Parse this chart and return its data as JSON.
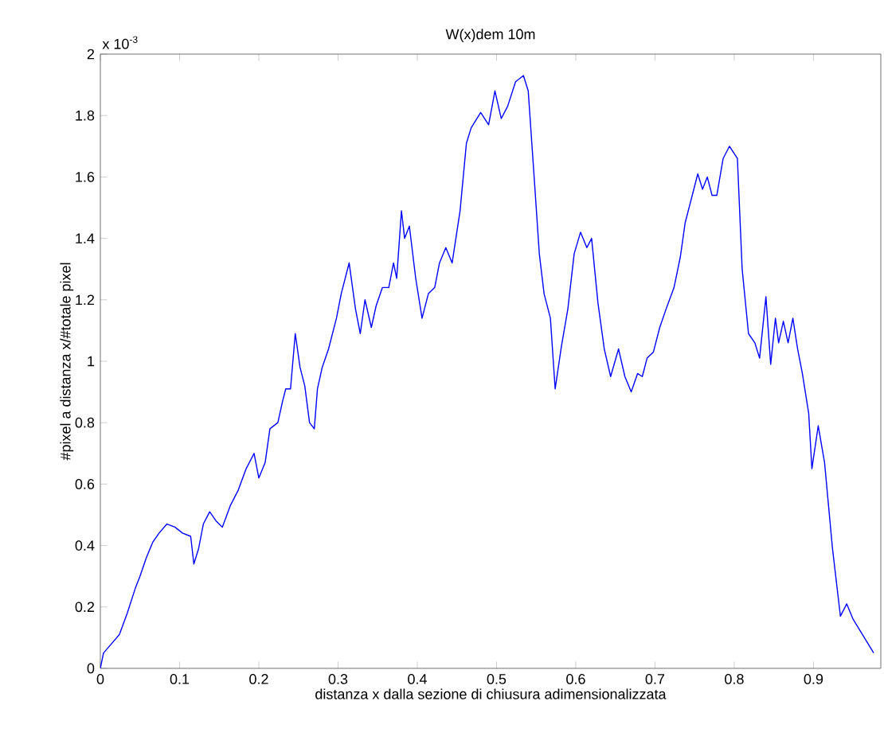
{
  "chart_data": {
    "type": "line",
    "title": "W(x)dem 10m",
    "xlabel": "distanza x dalla sezione di chiusura adimensionalizzata",
    "ylabel": "#pixel a distanza x/#totale pixel",
    "annotations": [
      "x 10$^{-3}$"
    ],
    "xlim": [
      0,
      0.985
    ],
    "xticks": [
      0,
      0.1,
      0.2,
      0.3,
      0.4,
      0.5,
      0.6,
      0.7,
      0.8,
      0.9
    ],
    "ylim": [
      0,
      2
    ],
    "yticks": [
      0,
      0.2,
      0.4,
      0.6,
      0.8,
      1,
      1.2,
      1.4,
      1.6,
      1.8,
      2
    ],
    "series": [
      {
        "color": "#0000ff",
        "x": [
          0,
          0.004,
          0.014,
          0.024,
          0.034,
          0.044,
          0.05,
          0.058,
          0.066,
          0.074,
          0.084,
          0.094,
          0.104,
          0.114,
          0.118,
          0.124,
          0.13,
          0.138,
          0.146,
          0.154,
          0.164,
          0.174,
          0.184,
          0.194,
          0.2,
          0.208,
          0.214,
          0.224,
          0.23,
          0.234,
          0.24,
          0.246,
          0.252,
          0.258,
          0.264,
          0.27,
          0.274,
          0.28,
          0.288,
          0.298,
          0.304,
          0.314,
          0.322,
          0.328,
          0.334,
          0.342,
          0.348,
          0.356,
          0.364,
          0.37,
          0.374,
          0.38,
          0.384,
          0.39,
          0.398,
          0.406,
          0.414,
          0.422,
          0.428,
          0.436,
          0.444,
          0.454,
          0.462,
          0.468,
          0.48,
          0.49,
          0.498,
          0.506,
          0.514,
          0.524,
          0.534,
          0.54,
          0.548,
          0.554,
          0.56,
          0.568,
          0.574,
          0.582,
          0.59,
          0.598,
          0.606,
          0.614,
          0.62,
          0.628,
          0.636,
          0.644,
          0.654,
          0.662,
          0.67,
          0.678,
          0.684,
          0.69,
          0.698,
          0.706,
          0.714,
          0.724,
          0.732,
          0.738,
          0.746,
          0.754,
          0.76,
          0.766,
          0.772,
          0.778,
          0.786,
          0.794,
          0.804,
          0.81,
          0.818,
          0.826,
          0.832,
          0.84,
          0.846,
          0.852,
          0.856,
          0.862,
          0.868,
          0.874,
          0.88,
          0.886,
          0.894,
          0.898,
          0.906,
          0.914,
          0.924,
          0.934,
          0.942,
          0.95,
          0.976
        ],
        "values": [
          0,
          0.05,
          0.08,
          0.11,
          0.18,
          0.26,
          0.3,
          0.36,
          0.41,
          0.44,
          0.47,
          0.46,
          0.44,
          0.43,
          0.34,
          0.39,
          0.47,
          0.51,
          0.48,
          0.46,
          0.53,
          0.58,
          0.65,
          0.7,
          0.62,
          0.67,
          0.78,
          0.8,
          0.87,
          0.91,
          0.91,
          1.09,
          0.98,
          0.92,
          0.8,
          0.78,
          0.91,
          0.98,
          1.04,
          1.14,
          1.22,
          1.32,
          1.17,
          1.09,
          1.2,
          1.11,
          1.18,
          1.24,
          1.24,
          1.32,
          1.27,
          1.49,
          1.4,
          1.44,
          1.27,
          1.14,
          1.22,
          1.24,
          1.32,
          1.37,
          1.32,
          1.49,
          1.71,
          1.76,
          1.81,
          1.77,
          1.88,
          1.79,
          1.83,
          1.91,
          1.93,
          1.88,
          1.58,
          1.35,
          1.22,
          1.14,
          0.91,
          1.05,
          1.17,
          1.35,
          1.42,
          1.37,
          1.4,
          1.19,
          1.04,
          0.95,
          1.04,
          0.95,
          0.9,
          0.96,
          0.95,
          1.01,
          1.03,
          1.11,
          1.17,
          1.24,
          1.34,
          1.45,
          1.53,
          1.61,
          1.56,
          1.6,
          1.54,
          1.54,
          1.66,
          1.7,
          1.66,
          1.3,
          1.09,
          1.06,
          1.01,
          1.21,
          0.99,
          1.14,
          1.06,
          1.13,
          1.06,
          1.14,
          1.04,
          0.96,
          0.83,
          0.65,
          0.79,
          0.67,
          0.39,
          0.17,
          0.21,
          0.16,
          0.05
        ]
      }
    ]
  }
}
